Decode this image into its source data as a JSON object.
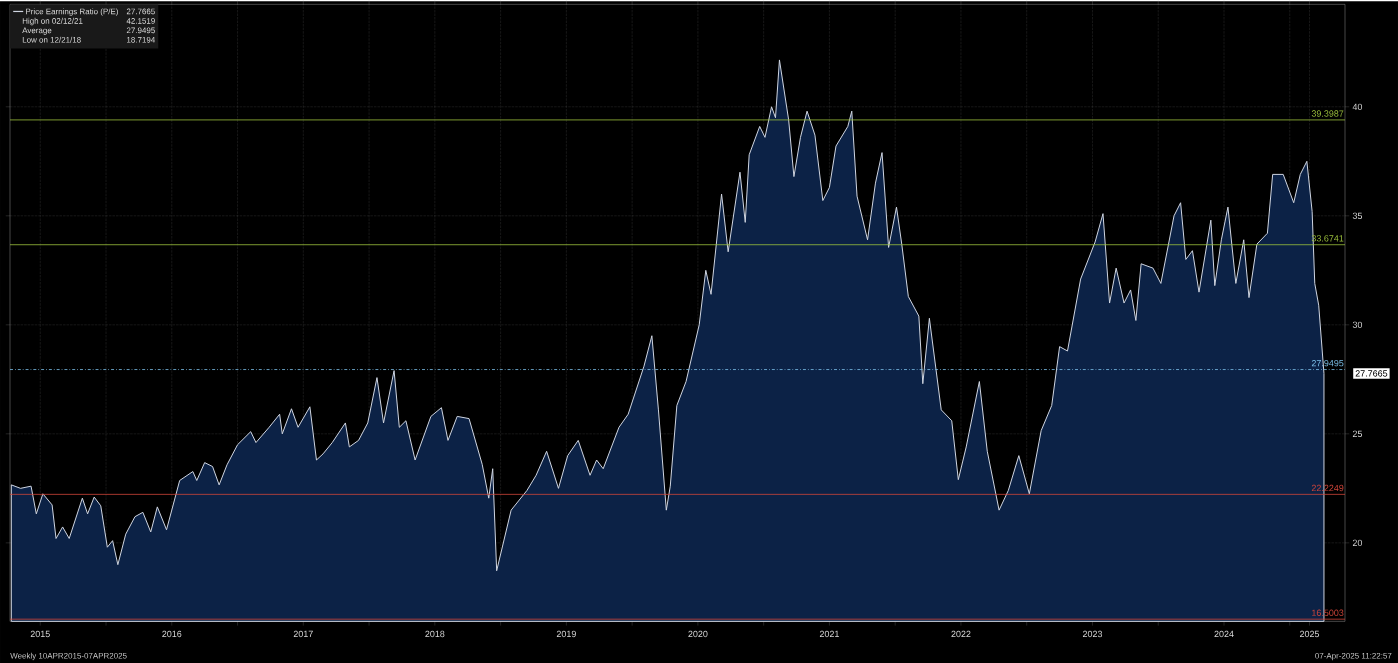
{
  "chart_data": {
    "type": "area",
    "x": [
      2015.28,
      2015.35,
      2015.43,
      2015.47,
      2015.52,
      2015.59,
      2015.62,
      2015.67,
      2015.72,
      2015.82,
      2015.86,
      2015.91,
      2015.96,
      2016.01,
      2016.05,
      2016.09,
      2016.15,
      2016.22,
      2016.28,
      2016.34,
      2016.39,
      2016.46,
      2016.56,
      2016.66,
      2016.69,
      2016.75,
      2016.81,
      2016.86,
      2016.92,
      2017.0,
      2017.1,
      2017.14,
      2017.24,
      2017.32,
      2017.34,
      2017.41,
      2017.46,
      2017.55,
      2017.6,
      2017.65,
      2017.72,
      2017.82,
      2017.85,
      2017.92,
      2017.99,
      2018.06,
      2018.11,
      2018.19,
      2018.23,
      2018.28,
      2018.35,
      2018.47,
      2018.55,
      2018.6,
      2018.67,
      2018.76,
      2018.86,
      2018.91,
      2018.94,
      2018.97,
      2019.08,
      2019.2,
      2019.27,
      2019.35,
      2019.44,
      2019.51,
      2019.59,
      2019.68,
      2019.73,
      2019.78,
      2019.9,
      2019.97,
      2020.09,
      2020.15,
      2020.2,
      2020.26,
      2020.29,
      2020.34,
      2020.41,
      2020.51,
      2020.56,
      2020.6,
      2020.68,
      2020.73,
      2020.82,
      2020.86,
      2020.89,
      2020.97,
      2021.01,
      2021.06,
      2021.09,
      2021.12,
      2021.19,
      2021.23,
      2021.28,
      2021.33,
      2021.39,
      2021.45,
      2021.5,
      2021.55,
      2021.64,
      2021.67,
      2021.71,
      2021.79,
      2021.85,
      2021.9,
      2021.95,
      2022.01,
      2022.05,
      2022.1,
      2022.18,
      2022.21,
      2022.26,
      2022.35,
      2022.43,
      2022.48,
      2022.54,
      2022.64,
      2022.7,
      2022.79,
      2022.86,
      2022.94,
      2023.02,
      2023.11,
      2023.19,
      2023.25,
      2023.31,
      2023.41,
      2023.52,
      2023.58,
      2023.63,
      2023.68,
      2023.74,
      2023.79,
      2023.83,
      2023.87,
      2023.96,
      2024.02,
      2024.12,
      2024.17,
      2024.21,
      2024.26,
      2024.31,
      2024.4,
      2024.43,
      2024.48,
      2024.53,
      2024.59,
      2024.65,
      2024.69,
      2024.75,
      2024.83,
      2024.87,
      2024.95,
      2025.03,
      2025.08,
      2025.13,
      2025.17,
      2025.19,
      2025.22,
      2025.26
    ],
    "series": [
      {
        "name": "Price Earnings Ratio (P/E)",
        "color": "#d0d6e2",
        "values": [
          22.66,
          22.5,
          22.6,
          21.33,
          22.25,
          21.74,
          20.2,
          20.73,
          20.2,
          22.05,
          21.33,
          22.1,
          21.7,
          19.8,
          20.1,
          19.0,
          20.4,
          21.2,
          21.4,
          20.5,
          21.65,
          20.6,
          22.86,
          23.27,
          22.86,
          23.68,
          23.5,
          22.66,
          23.58,
          24.5,
          25.1,
          24.6,
          25.3,
          25.9,
          25.0,
          26.15,
          25.3,
          26.24,
          23.8,
          24.08,
          24.6,
          25.5,
          24.4,
          24.7,
          25.5,
          27.58,
          25.5,
          27.9,
          25.3,
          25.6,
          23.8,
          25.8,
          26.2,
          24.7,
          25.8,
          25.7,
          23.6,
          22.05,
          23.4,
          18.72,
          21.5,
          22.4,
          23.1,
          24.2,
          22.5,
          24.0,
          24.7,
          23.1,
          23.8,
          23.4,
          25.3,
          25.9,
          28.1,
          29.5,
          26.1,
          21.5,
          22.6,
          26.3,
          27.4,
          30.0,
          32.5,
          31.4,
          36.0,
          33.35,
          37.0,
          34.7,
          37.8,
          39.1,
          38.6,
          40.0,
          39.5,
          42.15,
          39.4,
          36.8,
          38.6,
          39.8,
          38.7,
          35.7,
          36.3,
          38.2,
          39.1,
          39.8,
          35.9,
          33.9,
          36.5,
          37.9,
          33.55,
          35.4,
          33.7,
          31.3,
          30.4,
          27.3,
          30.3,
          26.1,
          25.6,
          22.9,
          24.4,
          27.4,
          24.2,
          21.5,
          22.4,
          24.0,
          22.25,
          25.15,
          26.3,
          29.0,
          28.8,
          32.1,
          33.8,
          35.1,
          31.0,
          32.6,
          31.0,
          31.6,
          30.2,
          32.8,
          32.6,
          31.9,
          35.0,
          35.6,
          33.0,
          33.4,
          31.5,
          34.8,
          31.8,
          33.9,
          35.4,
          31.9,
          33.9,
          31.25,
          33.7,
          34.2,
          36.9,
          36.9,
          35.6,
          36.9,
          37.5,
          35.2,
          31.9,
          30.9,
          27.77
        ]
      }
    ],
    "xlim": [
      2015.27,
      2025.42
    ],
    "xticks": [
      {
        "value": 2015.5,
        "label": "2015"
      },
      {
        "value": 2016,
        "label": null
      },
      {
        "value": 2016.5,
        "label": "2016"
      },
      {
        "value": 2017,
        "label": null
      },
      {
        "value": 2017.5,
        "label": "2017"
      },
      {
        "value": 2018,
        "label": null
      },
      {
        "value": 2018.5,
        "label": "2018"
      },
      {
        "value": 2019,
        "label": null
      },
      {
        "value": 2019.5,
        "label": "2019"
      },
      {
        "value": 2020,
        "label": null
      },
      {
        "value": 2020.5,
        "label": "2020"
      },
      {
        "value": 2021,
        "label": null
      },
      {
        "value": 2021.5,
        "label": "2021"
      },
      {
        "value": 2022,
        "label": null
      },
      {
        "value": 2022.5,
        "label": "2022"
      },
      {
        "value": 2023,
        "label": null
      },
      {
        "value": 2023.5,
        "label": "2023"
      },
      {
        "value": 2024,
        "label": null
      },
      {
        "value": 2024.5,
        "label": "2024"
      },
      {
        "value": 2025,
        "label": null
      },
      {
        "value": 2025.15,
        "label": "2025"
      }
    ],
    "ylim": [
      16.4,
      44.7
    ],
    "yticks": [
      20,
      25,
      30,
      35,
      40
    ],
    "grid": true,
    "legend": "top left",
    "marker": "none",
    "line_style": "solid",
    "ref_lines": [
      {
        "axis": "y",
        "value": 39.3987,
        "label": "39.3987",
        "color": "#9cc03c",
        "line_style": "solid"
      },
      {
        "axis": "y",
        "value": 33.6741,
        "label": "33.6741",
        "color": "#9cc03c",
        "line_style": "solid"
      },
      {
        "axis": "y",
        "value": 27.9495,
        "label": "27.9495",
        "color": "#7cc0ea",
        "line_style": "dashed"
      },
      {
        "axis": "y",
        "value": 22.2249,
        "label": "22.2249",
        "color": "#d0453a",
        "line_style": "solid"
      },
      {
        "axis": "y",
        "value": 16.5003,
        "label": "16.5003",
        "color": "#d0453a",
        "line_style": "solid"
      }
    ],
    "annotations": [
      "27.7665",
      "High on 02/12/21",
      "42.1519",
      "Average",
      "27.9495",
      "Low on 12/21/18",
      "18.7194",
      "Weekly 10APR2015-07APR2025",
      "07-Apr-2025 11:22:57",
      "27.7665"
    ]
  }
}
